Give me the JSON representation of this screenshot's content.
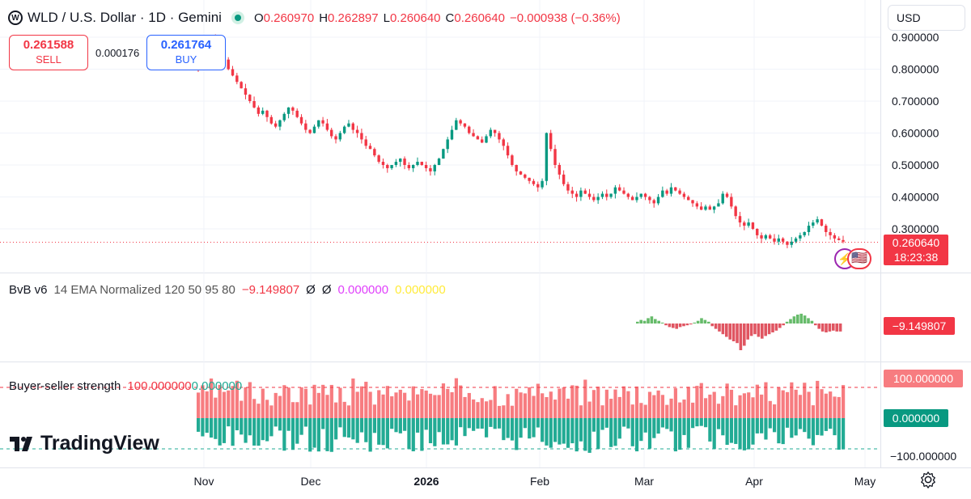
{
  "header": {
    "symbol_icon": "worldcoin-icon",
    "title": "WLD / U.S. Dollar · 1D · Gemini",
    "ohlc": {
      "o_label": "O",
      "o": "0.260970",
      "h_label": "H",
      "h": "0.262897",
      "l_label": "L",
      "l": "0.260640",
      "c_label": "C",
      "c": "0.260640",
      "change": "−0.000938 (−0.36%)"
    }
  },
  "trade": {
    "sell_price": "0.261588",
    "sell_label": "SELL",
    "spread": "0.000176",
    "buy_price": "0.261764",
    "buy_label": "BUY"
  },
  "currency_select": "USD",
  "colors": {
    "up": "#089981",
    "down": "#f23645",
    "green_hist": "#22ab94",
    "red_hist": "#f77c80",
    "bvb_green": "#66bb6a",
    "bvb_red": "#e05561",
    "magenta": "#e040fb",
    "yellow": "#ffeb3b"
  },
  "price_axis": {
    "ticks": [
      "0.900000",
      "0.800000",
      "0.700000",
      "0.600000",
      "0.500000",
      "0.400000",
      "0.300000"
    ]
  },
  "last_price_tag": {
    "value": "0.260640",
    "countdown": "18:23:38"
  },
  "x_axis": {
    "labels": [
      "Nov",
      "Dec",
      "2026",
      "Feb",
      "Mar",
      "Apr",
      "May"
    ]
  },
  "indicator1": {
    "name": "BvB v6",
    "params": "14 EMA Normalized 120 50 95 80",
    "value": "−9.149807",
    "v2": "Ø",
    "v3": "Ø",
    "v4": "0.000000",
    "v5": "0.000000",
    "tag": "−9.149807"
  },
  "indicator2": {
    "name": "Buyer-seller strength",
    "v1": "100.000000",
    "v2": "0.000000",
    "tags": [
      "100.000000",
      "0.000000",
      "−100.000000"
    ]
  },
  "branding": {
    "logo_text": "TradingView"
  },
  "chart_data": [
    {
      "type": "candlestick",
      "title": "WLD / U.S. Dollar · 1D · Gemini",
      "x_labels": [
        "Nov",
        "Dec",
        "2026",
        "Feb",
        "Mar",
        "Apr",
        "May"
      ],
      "ylim": [
        0.2,
        0.95
      ],
      "y_ticks": [
        0.9,
        0.8,
        0.7,
        0.6,
        0.5,
        0.4,
        0.3
      ],
      "last": 0.26064,
      "close_series": [
        0.8,
        0.82,
        0.88,
        0.9,
        0.87,
        0.85,
        0.83,
        0.8,
        0.78,
        0.76,
        0.74,
        0.72,
        0.7,
        0.68,
        0.66,
        0.67,
        0.65,
        0.63,
        0.62,
        0.64,
        0.66,
        0.68,
        0.67,
        0.65,
        0.63,
        0.61,
        0.6,
        0.62,
        0.64,
        0.63,
        0.61,
        0.59,
        0.58,
        0.6,
        0.62,
        0.63,
        0.61,
        0.6,
        0.58,
        0.56,
        0.55,
        0.53,
        0.51,
        0.5,
        0.49,
        0.5,
        0.51,
        0.52,
        0.5,
        0.49,
        0.5,
        0.51,
        0.5,
        0.49,
        0.48,
        0.5,
        0.52,
        0.55,
        0.58,
        0.61,
        0.64,
        0.63,
        0.62,
        0.6,
        0.59,
        0.58,
        0.57,
        0.59,
        0.61,
        0.6,
        0.58,
        0.56,
        0.53,
        0.5,
        0.48,
        0.47,
        0.46,
        0.45,
        0.44,
        0.43,
        0.45,
        0.6,
        0.55,
        0.5,
        0.47,
        0.44,
        0.42,
        0.41,
        0.4,
        0.42,
        0.41,
        0.4,
        0.39,
        0.4,
        0.41,
        0.4,
        0.41,
        0.43,
        0.42,
        0.41,
        0.4,
        0.39,
        0.4,
        0.41,
        0.4,
        0.39,
        0.38,
        0.4,
        0.42,
        0.41,
        0.43,
        0.42,
        0.41,
        0.4,
        0.39,
        0.38,
        0.37,
        0.36,
        0.37,
        0.36,
        0.37,
        0.38,
        0.41,
        0.4,
        0.37,
        0.34,
        0.32,
        0.31,
        0.32,
        0.3,
        0.28,
        0.27,
        0.28,
        0.27,
        0.26,
        0.27,
        0.26,
        0.25,
        0.26,
        0.27,
        0.28,
        0.29,
        0.31,
        0.32,
        0.33,
        0.31,
        0.29,
        0.28,
        0.27,
        0.265,
        0.26
      ]
    },
    {
      "type": "bar",
      "title": "BvB v6 14 EMA Normalized 120 50 95 80",
      "last": -9.149807,
      "values": [
        2,
        4,
        3,
        6,
        8,
        5,
        3,
        1,
        -2,
        -4,
        -5,
        -6,
        -4,
        -3,
        -2,
        -1,
        1,
        3,
        6,
        4,
        2,
        -3,
        -6,
        -9,
        -12,
        -15,
        -18,
        -20,
        -22,
        -30,
        -25,
        -18,
        -14,
        -12,
        -15,
        -17,
        -14,
        -12,
        -10,
        -8,
        -5,
        -2,
        2,
        5,
        8,
        10,
        11,
        9,
        6,
        3,
        -2,
        -6,
        -9,
        -10,
        -9,
        -8,
        -9,
        -9
      ]
    },
    {
      "type": "bar",
      "title": "Buyer-seller strength",
      "ylim": [
        -100,
        100
      ],
      "last": 100,
      "note": "paired buyer (green, below) and seller (red, above) strength bars"
    }
  ]
}
